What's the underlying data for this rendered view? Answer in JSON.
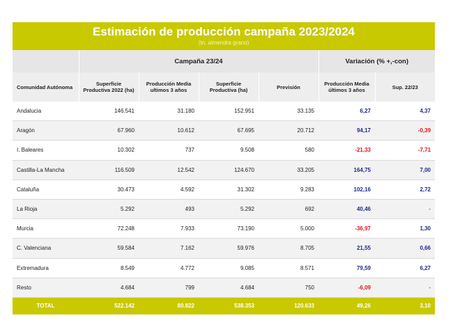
{
  "header": {
    "title": "Estimación de producción campaña 2023/2024",
    "subtitle": "(tn. almendra grano)"
  },
  "groups": {
    "campaign": "Campaña 23/24",
    "variation": "Variación (% +,-con)"
  },
  "columns": [
    "Comunidad Autónoma",
    "Superficie Productiva 2022 (ha)",
    "Producción Media ultimos 3 años",
    "Superficie Productiva (ha)",
    "Previsión",
    "Producción Media últimos 3 años",
    "Sup. 22/23"
  ],
  "rows": [
    {
      "region": "Andalucia",
      "sup2022": "146.541",
      "prod_media": "31.180",
      "sup": "152.951",
      "prevision": "33.135",
      "var_prod": "6,27",
      "var_sup": "4,37"
    },
    {
      "region": "Aragón",
      "sup2022": "67.960",
      "prod_media": "10.612",
      "sup": "67.695",
      "prevision": "20.712",
      "var_prod": "94,17",
      "var_sup": "-0,39"
    },
    {
      "region": "I. Baleares",
      "sup2022": "10.302",
      "prod_media": "737",
      "sup": "9.508",
      "prevision": "580",
      "var_prod": "-21,33",
      "var_sup": "-7,71"
    },
    {
      "region": "Castilla-La Mancha",
      "sup2022": "116.509",
      "prod_media": "12.542",
      "sup": "124.670",
      "prevision": "33.205",
      "var_prod": "164,75",
      "var_sup": "7,00"
    },
    {
      "region": "Cataluña",
      "sup2022": "30.473",
      "prod_media": "4.592",
      "sup": "31.302",
      "prevision": "9.283",
      "var_prod": "102,16",
      "var_sup": "2,72"
    },
    {
      "region": "La Rioja",
      "sup2022": "5.292",
      "prod_media": "493",
      "sup": "5.292",
      "prevision": "692",
      "var_prod": "40,46",
      "var_sup": "-"
    },
    {
      "region": "Murcia",
      "sup2022": "72.248",
      "prod_media": "7.933",
      "sup": "73.190",
      "prevision": "5.000",
      "var_prod": "-36,97",
      "var_sup": "1,30"
    },
    {
      "region": "C. Valenciana",
      "sup2022": "59.584",
      "prod_media": "7.162",
      "sup": "59.976",
      "prevision": "8.705",
      "var_prod": "21,55",
      "var_sup": "0,66"
    },
    {
      "region": "Extremadura",
      "sup2022": "8.549",
      "prod_media": "4.772",
      "sup": "9.085",
      "prevision": "8.571",
      "var_prod": "79,59",
      "var_sup": "6,27"
    },
    {
      "region": "Resto",
      "sup2022": "4.684",
      "prod_media": "799",
      "sup": "4.684",
      "prevision": "750",
      "var_prod": "-6,09",
      "var_sup": "-"
    }
  ],
  "total": {
    "label": "TOTAL",
    "sup2022": "522.142",
    "prod_media": "80.822",
    "sup": "538.353",
    "prevision": "120.633",
    "var_prod": "49,26",
    "var_sup": "3,10"
  },
  "colors": {
    "accent": "#c9c900",
    "positive": "#1f2a8a",
    "negative": "#e0141e"
  }
}
